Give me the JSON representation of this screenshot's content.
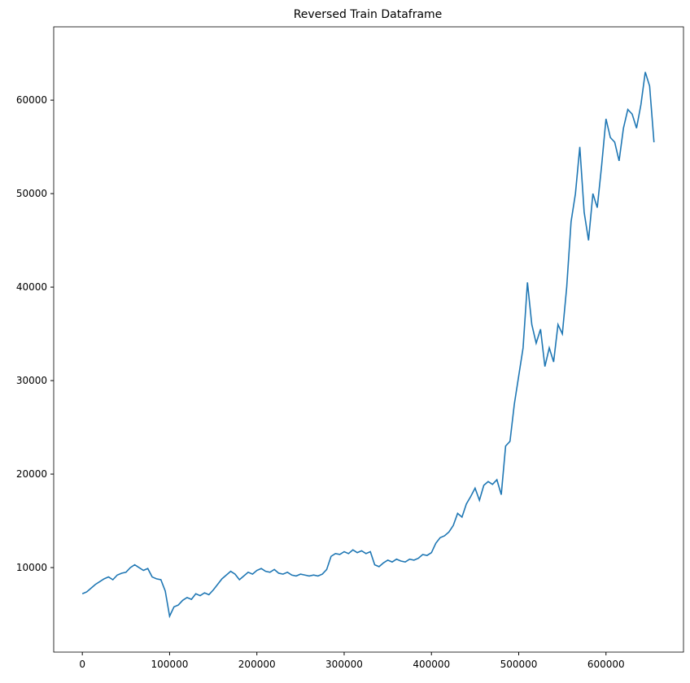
{
  "chart_data": {
    "type": "line",
    "title": "Reversed Train Dataframe",
    "x": [
      0,
      5000,
      10000,
      15000,
      20000,
      25000,
      30000,
      35000,
      40000,
      45000,
      50000,
      55000,
      60000,
      65000,
      70000,
      75000,
      80000,
      85000,
      90000,
      95000,
      100000,
      105000,
      110000,
      115000,
      120000,
      125000,
      130000,
      135000,
      140000,
      145000,
      150000,
      155000,
      160000,
      165000,
      170000,
      175000,
      180000,
      185000,
      190000,
      195000,
      200000,
      205000,
      210000,
      215000,
      220000,
      225000,
      230000,
      235000,
      240000,
      245000,
      250000,
      255000,
      260000,
      265000,
      270000,
      275000,
      280000,
      285000,
      290000,
      295000,
      300000,
      305000,
      310000,
      315000,
      320000,
      325000,
      330000,
      335000,
      340000,
      345000,
      350000,
      355000,
      360000,
      365000,
      370000,
      375000,
      380000,
      385000,
      390000,
      395000,
      400000,
      405000,
      410000,
      415000,
      420000,
      425000,
      430000,
      435000,
      440000,
      445000,
      450000,
      455000,
      460000,
      465000,
      470000,
      475000,
      480000,
      485000,
      490000,
      495000,
      500000,
      505000,
      510000,
      515000,
      520000,
      525000,
      530000,
      535000,
      540000,
      545000,
      550000,
      555000,
      560000,
      565000,
      570000,
      575000,
      580000,
      585000,
      590000,
      595000,
      600000,
      605000,
      610000,
      615000,
      620000,
      625000,
      630000,
      635000,
      640000,
      645000,
      650000,
      655000
    ],
    "series": [
      {
        "color": "#1f77b4",
        "values": [
          7200,
          7400,
          7800,
          8200,
          8500,
          8800,
          9000,
          8700,
          9200,
          9400,
          9500,
          10000,
          10300,
          10000,
          9700,
          9900,
          9000,
          8800,
          8700,
          7500,
          4800,
          5800,
          6000,
          6500,
          6800,
          6600,
          7200,
          7000,
          7300,
          7100,
          7600,
          8200,
          8800,
          9200,
          9600,
          9300,
          8700,
          9100,
          9500,
          9300,
          9700,
          9900,
          9600,
          9500,
          9800,
          9400,
          9300,
          9500,
          9200,
          9100,
          9300,
          9200,
          9100,
          9200,
          9100,
          9300,
          9800,
          11200,
          11500,
          11400,
          11700,
          11500,
          11900,
          11600,
          11800,
          11500,
          11700,
          10300,
          10100,
          10500,
          10800,
          10600,
          10900,
          10700,
          10600,
          10900,
          10800,
          11000,
          11400,
          11300,
          11600,
          12600,
          13200,
          13400,
          13800,
          14500,
          15800,
          15400,
          16800,
          17600,
          18500,
          17200,
          18800,
          19200,
          18900,
          19400,
          17800,
          23000,
          23500,
          27500,
          30500,
          33500,
          40500,
          36000,
          34000,
          35500,
          31500,
          33500,
          32000,
          36000,
          35000,
          40000,
          47000,
          50000,
          55000,
          48000,
          45000,
          50000,
          48500,
          53000,
          58000,
          56000,
          55500,
          53500,
          57000,
          59000,
          58500,
          57000,
          59500,
          63000,
          61500,
          55500
        ]
      }
    ],
    "xlim": [
      -32800,
      688800
    ],
    "xticks": [
      0,
      100000,
      200000,
      300000,
      400000,
      500000,
      600000
    ],
    "ylim": [
      960,
      67840
    ],
    "yticks": [
      10000,
      20000,
      30000,
      40000,
      50000,
      60000
    ]
  }
}
